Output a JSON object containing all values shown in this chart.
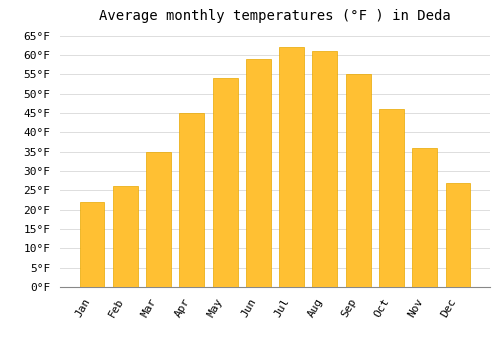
{
  "title": "Average monthly temperatures (°F ) in Deda",
  "months": [
    "Jan",
    "Feb",
    "Mar",
    "Apr",
    "May",
    "Jun",
    "Jul",
    "Aug",
    "Sep",
    "Oct",
    "Nov",
    "Dec"
  ],
  "values": [
    22,
    26,
    35,
    45,
    54,
    59,
    62,
    61,
    55,
    46,
    36,
    27
  ],
  "bar_color": "#FFC033",
  "bar_edge_color": "#E8A800",
  "background_color": "#FFFFFF",
  "grid_color": "#DDDDDD",
  "ylim": [
    0,
    67
  ],
  "yticks": [
    0,
    5,
    10,
    15,
    20,
    25,
    30,
    35,
    40,
    45,
    50,
    55,
    60,
    65
  ],
  "title_fontsize": 10,
  "tick_fontsize": 8,
  "bar_width": 0.75
}
